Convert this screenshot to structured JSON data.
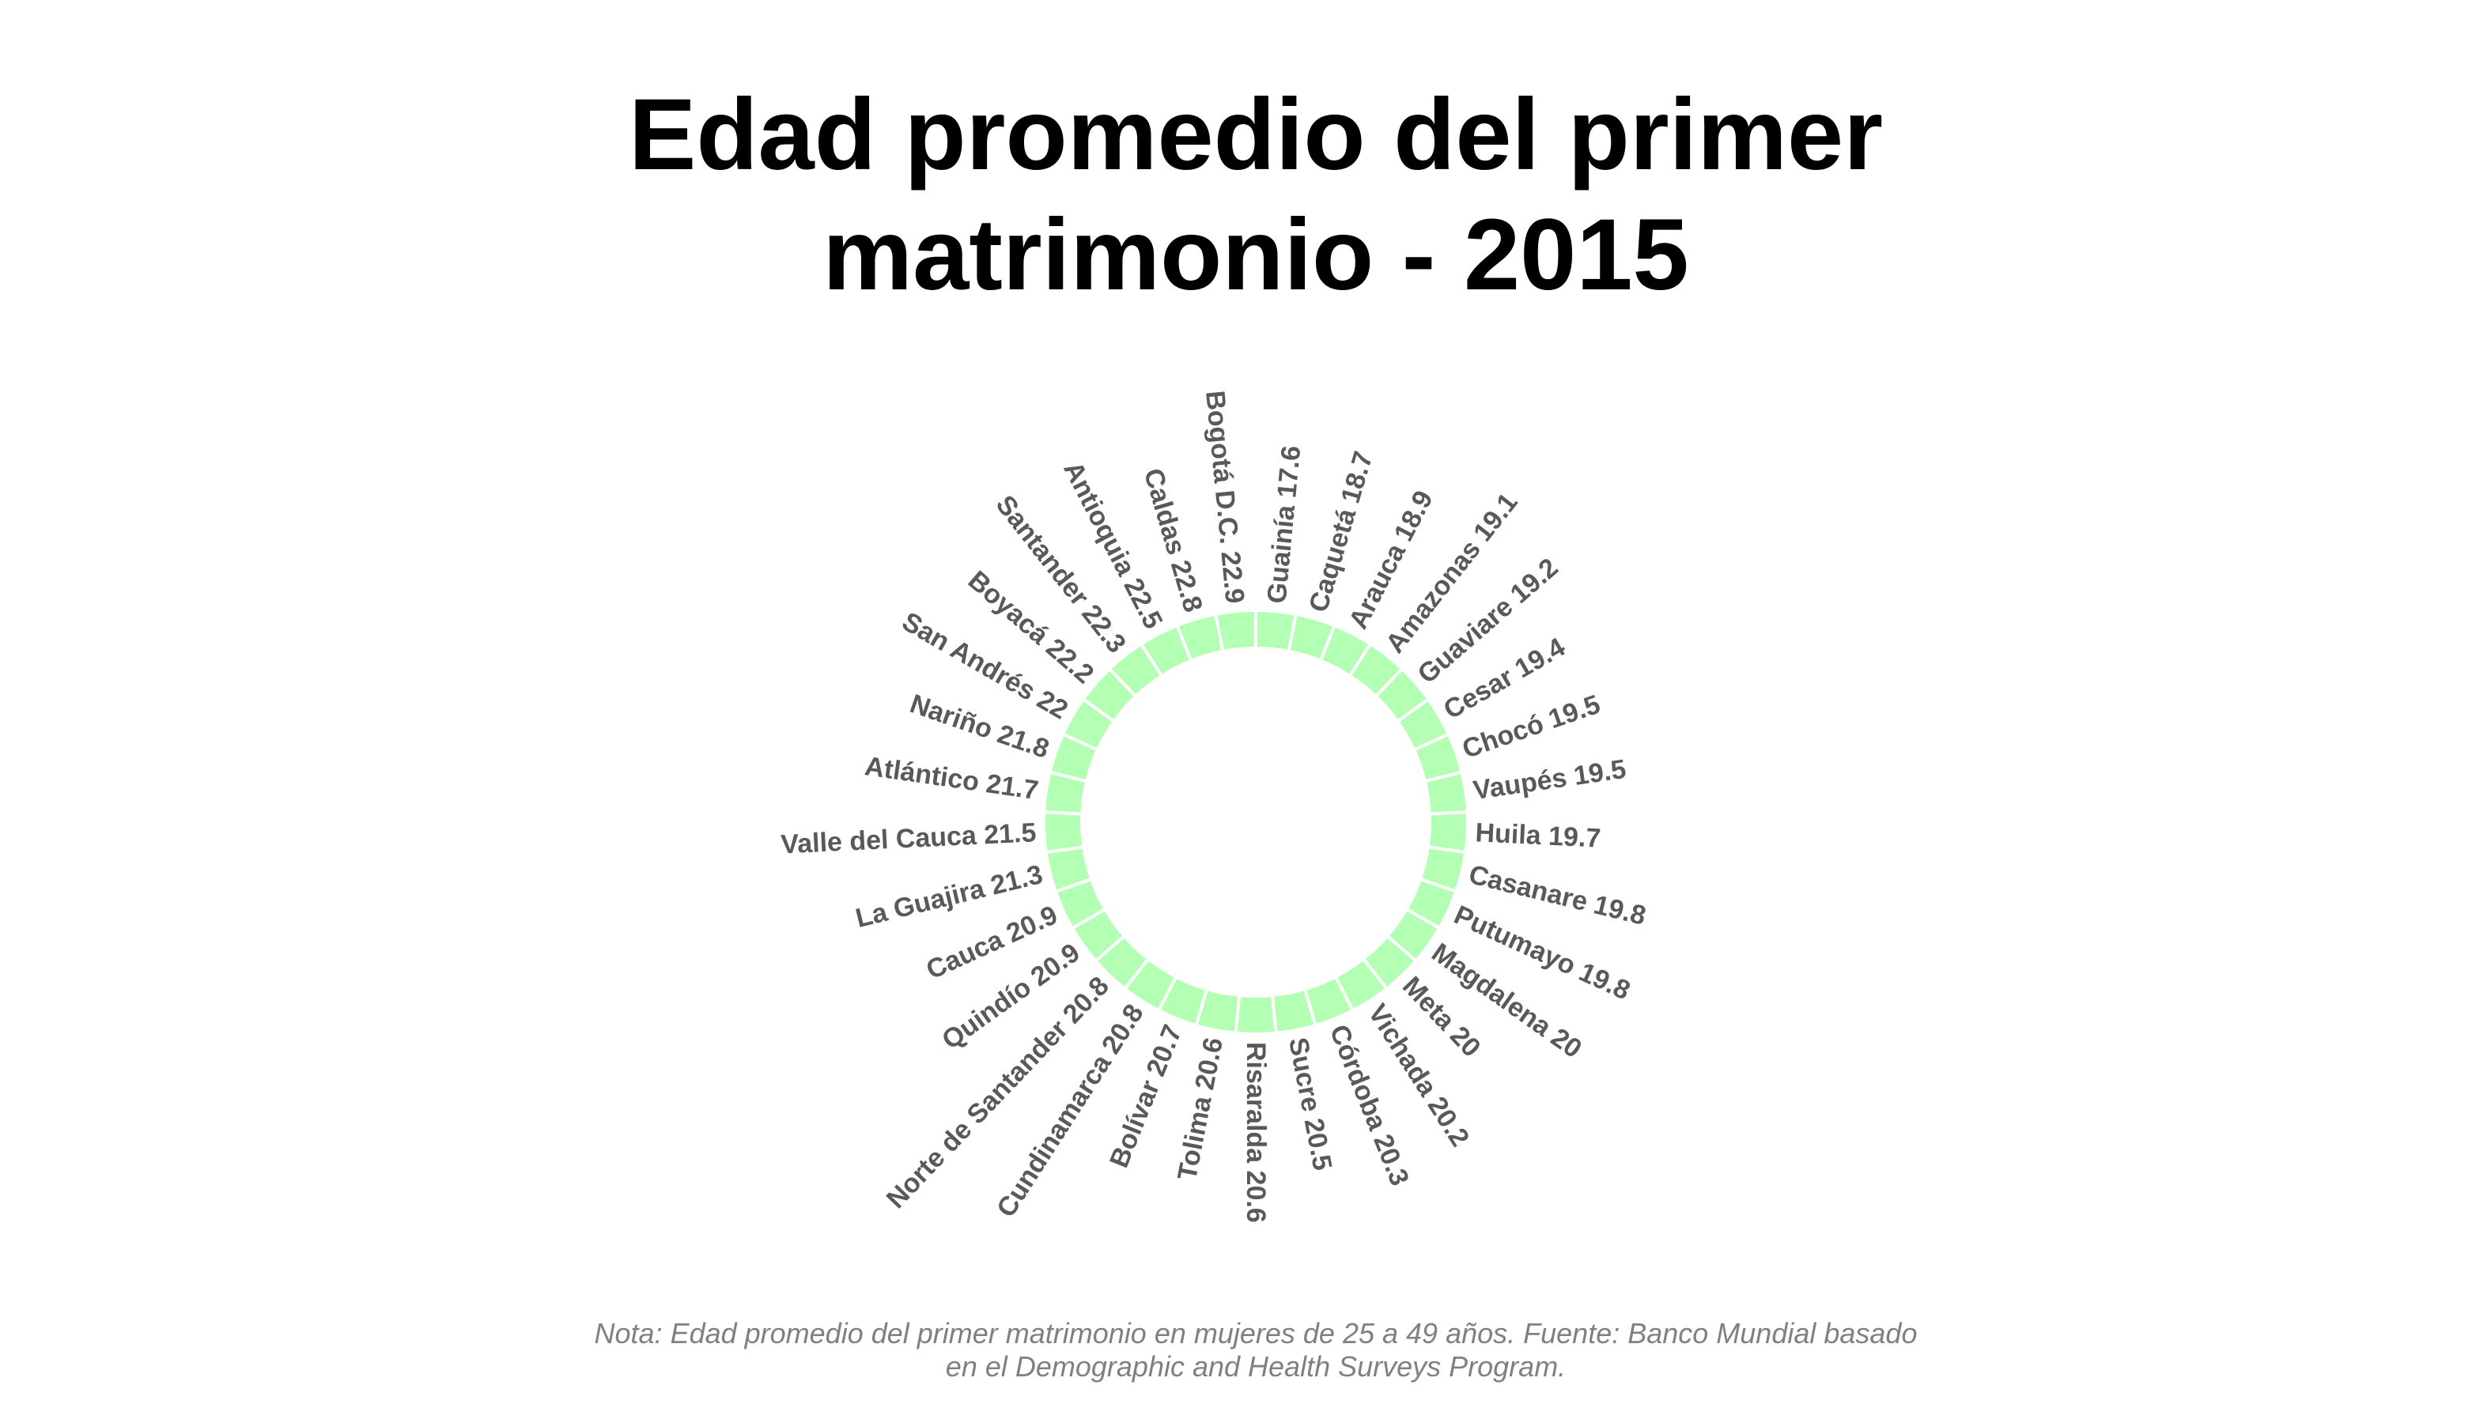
{
  "title_lines": [
    "Edad promedio del primer",
    "matrimonio - 2015"
  ],
  "note_lines": [
    "Nota: Edad promedio del primer matrimonio en mujeres de 25 a 49 años. Fuente: Banco Mundial basado",
    "en el Demographic and Health Surveys Program."
  ],
  "colors": {
    "bar": "#b3ffb3",
    "separator": "#ffffff",
    "label": "#595959",
    "title": "#000000",
    "note": "#808080"
  },
  "chart_data": {
    "type": "bar",
    "layout": "circular",
    "title": "Edad promedio del primer matrimonio - 2015",
    "categories": [
      "Guainía",
      "Caquetá",
      "Arauca",
      "Amazonas",
      "Guaviare",
      "Cesar",
      "Chocó",
      "Vaupés",
      "Huila",
      "Casanare",
      "Putumayo",
      "Magdalena",
      "Meta",
      "Vichada",
      "Córdoba",
      "Sucre",
      "Risaralda",
      "Tolima",
      "Bolívar",
      "Cundinamarca",
      "Norte de Santander",
      "Quindío",
      "Cauca",
      "La Guajira",
      "Valle del Cauca",
      "Atlántico",
      "Nariño",
      "San Andrés",
      "Boyacá",
      "Santander",
      "Antioquia",
      "Caldas",
      "Bogotá D.C."
    ],
    "values": [
      17.6,
      18.7,
      18.9,
      19.1,
      19.2,
      19.4,
      19.5,
      19.5,
      19.7,
      19.8,
      19.8,
      20,
      20,
      20.2,
      20.3,
      20.5,
      20.6,
      20.6,
      20.7,
      20.8,
      20.8,
      20.9,
      20.9,
      21.3,
      21.5,
      21.7,
      21.8,
      22,
      22.2,
      22.3,
      22.5,
      22.8,
      22.9
    ],
    "labels": [
      "Guainía 17.6",
      "Caquetá 18.7",
      "Arauca 18.9",
      "Amazonas 19.1",
      "Guaviare 19.2",
      "Cesar 19.4",
      "Chocó 19.5",
      "Vaupés 19.5",
      "Huila 19.7",
      "Casanare 19.8",
      "Putumayo 19.8",
      "Magdalena 20",
      "Meta 20",
      "Vichada 20.2",
      "Córdoba 20.3",
      "Sucre 20.5",
      "Risaralda 20.6",
      "Tolima 20.6",
      "Bolívar 20.7",
      "Cundinamarca 20.8",
      "Norte de Santander 20.8",
      "Quindío 20.9",
      "Cauca 20.9",
      "La Guajira 21.3",
      "Valle del Cauca 21.5",
      "Atlántico 21.7",
      "Nariño 21.8",
      "San Andrés 22",
      "Boyacá 22.2",
      "Santander 22.3",
      "Antioquia 22.5",
      "Caldas 22.8",
      "Bogotá D.C. 22.9"
    ],
    "ylim": [
      0,
      23
    ],
    "grid": false,
    "legend": "none"
  }
}
